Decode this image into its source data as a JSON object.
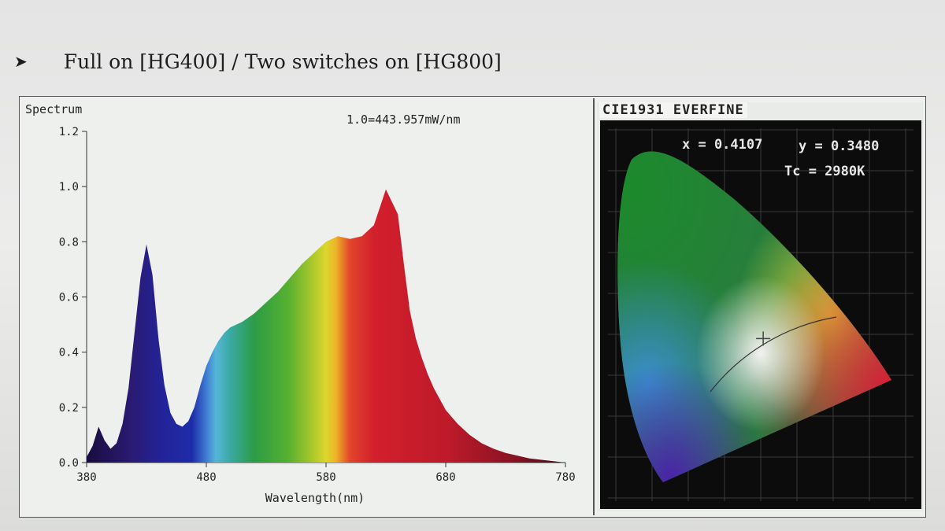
{
  "heading": {
    "bullet": "➤",
    "text": "Full on [HG400] / Two switches on [HG800]"
  },
  "chart_data": [
    {
      "type": "area",
      "title": "Spectrum",
      "annotation": "1.0=443.957mW/nm",
      "xlabel": "Wavelength(nm)",
      "ylabel": "",
      "xlim": [
        380,
        780
      ],
      "ylim": [
        0.0,
        1.2
      ],
      "x_ticks": [
        380,
        480,
        580,
        680,
        780
      ],
      "x_tick_labels": [
        "380",
        "480",
        "580",
        "680",
        "780"
      ],
      "y_ticks": [
        0.0,
        0.2,
        0.4,
        0.6,
        0.8,
        1.0,
        1.2
      ],
      "y_tick_labels": [
        "0.0",
        "0.2",
        "0.4",
        "0.6",
        "0.8",
        "1.0",
        "1.2"
      ],
      "fill": "spectral gradient (violet to deep red)",
      "series": [
        {
          "x": [
            380,
            385,
            390,
            395,
            400,
            405,
            410,
            415,
            420,
            425,
            430,
            435,
            440,
            445,
            450,
            455,
            460,
            465,
            470,
            475,
            480,
            485,
            490,
            495,
            500,
            505,
            510,
            520,
            530,
            540,
            550,
            560,
            570,
            580,
            590,
            600,
            610,
            620,
            630,
            640,
            645,
            650,
            655,
            660,
            665,
            670,
            675,
            680,
            690,
            700,
            710,
            720,
            730,
            740,
            750,
            760,
            770,
            780
          ],
          "values": [
            0.02,
            0.06,
            0.13,
            0.08,
            0.05,
            0.07,
            0.14,
            0.27,
            0.47,
            0.67,
            0.79,
            0.68,
            0.45,
            0.28,
            0.18,
            0.14,
            0.13,
            0.15,
            0.2,
            0.28,
            0.35,
            0.4,
            0.44,
            0.47,
            0.49,
            0.5,
            0.51,
            0.54,
            0.58,
            0.62,
            0.67,
            0.72,
            0.76,
            0.8,
            0.82,
            0.81,
            0.82,
            0.86,
            0.99,
            0.9,
            0.72,
            0.55,
            0.45,
            0.38,
            0.32,
            0.27,
            0.23,
            0.19,
            0.14,
            0.1,
            0.07,
            0.05,
            0.035,
            0.025,
            0.015,
            0.01,
            0.005,
            0.0
          ]
        }
      ]
    },
    {
      "type": "scatter",
      "title": "CIE1931 EVERFINE",
      "readouts": {
        "x_text": "x = 0.4107",
        "y_text": "y = 0.3480",
        "tc_text": "Tc = 2980K"
      },
      "point": {
        "x": 0.4107,
        "y": 0.348
      },
      "colors": {
        "background": "#0c0c0c",
        "green": "#1c8a2c",
        "blue": "#3a8fd0",
        "violet": "#4a23a8",
        "red": "#e01836",
        "yellow": "#d6d63a",
        "white": "#f2f2f2"
      }
    }
  ]
}
